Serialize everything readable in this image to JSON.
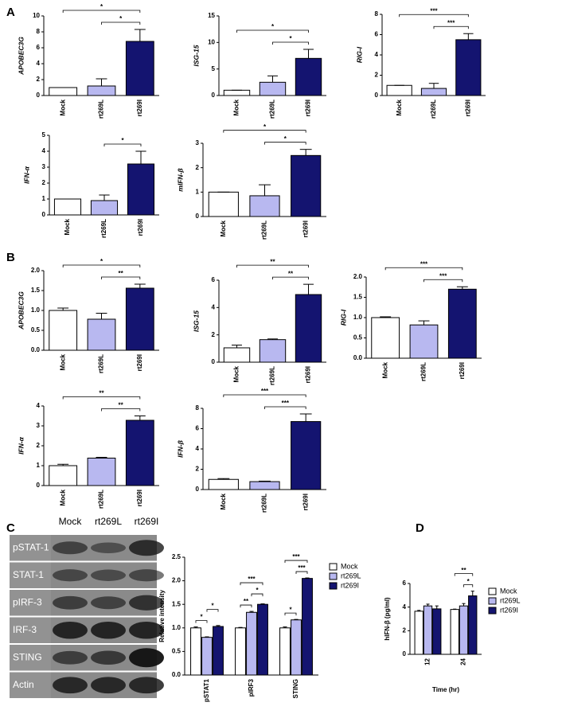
{
  "panels": [
    "A",
    "B",
    "C",
    "D"
  ],
  "blot": {
    "columns": [
      "Mock",
      "rt269L",
      "rt269I"
    ],
    "rows": [
      "pSTAT-1",
      "STAT-1",
      "pIRF-3",
      "IRF-3",
      "STING",
      "Actin"
    ]
  },
  "chart_data": [
    {
      "type": "bar",
      "y_label": "APOBEC3G",
      "categories": [
        "Mock",
        "rt269L",
        "rt269I"
      ],
      "values": [
        1,
        1.2,
        6.8
      ],
      "errors": [
        0,
        0.9,
        1.5
      ],
      "colors": [
        "#ffffff",
        "#b8b8f0",
        "#141470"
      ],
      "ylim": [
        0,
        10
      ],
      "yticks": [
        0,
        2,
        4,
        6,
        8,
        10
      ],
      "significance": [
        {
          "from": 1,
          "to": 2,
          "label": "*"
        },
        {
          "from": 0,
          "to": 2,
          "label": "*"
        }
      ]
    },
    {
      "type": "bar",
      "y_label": "ISG-15",
      "categories": [
        "Mock",
        "rt269L",
        "rt269I"
      ],
      "values": [
        1,
        2.5,
        7
      ],
      "errors": [
        0,
        1.2,
        1.7
      ],
      "colors": [
        "#ffffff",
        "#b8b8f0",
        "#141470"
      ],
      "ylim": [
        0,
        15
      ],
      "yticks": [
        0,
        5,
        10,
        15
      ],
      "significance": [
        {
          "from": 1,
          "to": 2,
          "label": "*"
        },
        {
          "from": 0,
          "to": 2,
          "label": "*"
        }
      ]
    },
    {
      "type": "bar",
      "y_label": "RIG-I",
      "categories": [
        "Mock",
        "rt269L",
        "rt269I"
      ],
      "values": [
        1,
        0.7,
        5.5
      ],
      "errors": [
        0,
        0.5,
        0.6
      ],
      "colors": [
        "#ffffff",
        "#b8b8f0",
        "#141470"
      ],
      "ylim": [
        0,
        8
      ],
      "yticks": [
        0,
        2,
        4,
        6,
        8
      ],
      "significance": [
        {
          "from": 1,
          "to": 2,
          "label": "***"
        },
        {
          "from": 0,
          "to": 2,
          "label": "***"
        }
      ]
    },
    {
      "type": "bar",
      "y_label": "IFN-α",
      "categories": [
        "Mock",
        "rt269L",
        "rt269I"
      ],
      "values": [
        1,
        0.9,
        3.2
      ],
      "errors": [
        0,
        0.35,
        0.8
      ],
      "colors": [
        "#ffffff",
        "#b8b8f0",
        "#141470"
      ],
      "ylim": [
        0,
        5
      ],
      "yticks": [
        0,
        1,
        2,
        3,
        4,
        5
      ],
      "significance": [
        {
          "from": 1,
          "to": 2,
          "label": "*"
        }
      ]
    },
    {
      "type": "bar",
      "y_label": "mIFN-β",
      "categories": [
        "Mock",
        "rt269L",
        "rt269I"
      ],
      "values": [
        1,
        0.85,
        2.5
      ],
      "errors": [
        0,
        0.45,
        0.25
      ],
      "colors": [
        "#ffffff",
        "#b8b8f0",
        "#141470"
      ],
      "ylim": [
        0,
        3
      ],
      "yticks": [
        0,
        1,
        2,
        3
      ],
      "significance": [
        {
          "from": 1,
          "to": 2,
          "label": "*"
        },
        {
          "from": 0,
          "to": 2,
          "label": "*"
        }
      ]
    },
    {
      "type": "bar",
      "y_label": "APOBEC3G",
      "categories": [
        "Mock",
        "rt269L",
        "rt269I"
      ],
      "values": [
        1,
        0.78,
        1.56
      ],
      "errors": [
        0.06,
        0.15,
        0.1
      ],
      "colors": [
        "#ffffff",
        "#b8b8f0",
        "#141470"
      ],
      "ylim": [
        0,
        2
      ],
      "yticks": [
        {
          "value": 0,
          "label": "0.0"
        },
        0.5,
        {
          "value": 1,
          "label": "1.0"
        },
        1.5,
        {
          "value": 2,
          "label": "2.0"
        }
      ],
      "significance": [
        {
          "from": 1,
          "to": 2,
          "label": "**"
        },
        {
          "from": 0,
          "to": 2,
          "label": "*"
        }
      ]
    },
    {
      "type": "bar",
      "y_label": "ISG-15",
      "categories": [
        "Mock",
        "rt269L",
        "rt269I"
      ],
      "values": [
        1.05,
        1.65,
        4.95
      ],
      "errors": [
        0.2,
        0.05,
        0.75
      ],
      "colors": [
        "#ffffff",
        "#b8b8f0",
        "#141470"
      ],
      "ylim": [
        0,
        6
      ],
      "yticks": [
        0,
        2,
        4,
        6
      ],
      "significance": [
        {
          "from": 1,
          "to": 2,
          "label": "**"
        },
        {
          "from": 0,
          "to": 2,
          "label": "**"
        }
      ]
    },
    {
      "type": "bar",
      "y_label": "RIG-I",
      "categories": [
        "Mock",
        "rt269L",
        "rt269I"
      ],
      "values": [
        1,
        0.82,
        1.7
      ],
      "errors": [
        0.02,
        0.1,
        0.06
      ],
      "colors": [
        "#ffffff",
        "#b8b8f0",
        "#141470"
      ],
      "ylim": [
        0,
        2
      ],
      "yticks": [
        {
          "value": 0,
          "label": "0.0"
        },
        0.5,
        {
          "value": 1,
          "label": "1.0"
        },
        1.5,
        {
          "value": 2,
          "label": "2.0"
        }
      ],
      "significance": [
        {
          "from": 1,
          "to": 2,
          "label": "***"
        },
        {
          "from": 0,
          "to": 2,
          "label": "***"
        }
      ]
    },
    {
      "type": "bar",
      "y_label": "IFN-α",
      "categories": [
        "Mock",
        "rt269L",
        "rt269I"
      ],
      "values": [
        1,
        1.38,
        3.28
      ],
      "errors": [
        0.07,
        0.04,
        0.22
      ],
      "colors": [
        "#ffffff",
        "#b8b8f0",
        "#141470"
      ],
      "ylim": [
        0,
        4
      ],
      "yticks": [
        0,
        1,
        2,
        3,
        4
      ],
      "significance": [
        {
          "from": 1,
          "to": 2,
          "label": "**"
        },
        {
          "from": 0,
          "to": 2,
          "label": "**"
        }
      ]
    },
    {
      "type": "bar",
      "y_label": "IFN-β",
      "categories": [
        "Mock",
        "rt269L",
        "rt269I"
      ],
      "values": [
        1,
        0.78,
        6.7
      ],
      "errors": [
        0.08,
        0.05,
        0.75
      ],
      "colors": [
        "#ffffff",
        "#b8b8f0",
        "#141470"
      ],
      "ylim": [
        0,
        8
      ],
      "yticks": [
        0,
        2,
        4,
        6,
        8
      ],
      "significance": [
        {
          "from": 1,
          "to": 2,
          "label": "***"
        },
        {
          "from": 0,
          "to": 2,
          "label": "***"
        }
      ]
    },
    {
      "type": "grouped_bar",
      "y_label": "Relative intensity",
      "categories": [
        "pSTAT1",
        "pIRF3",
        "STING"
      ],
      "series": [
        {
          "name": "Mock",
          "color": "#ffffff",
          "values": [
            1,
            1,
            1
          ],
          "errors": [
            0.02,
            0.01,
            0.02
          ]
        },
        {
          "name": "rt269L",
          "color": "#b8b8f0",
          "values": [
            0.8,
            1.33,
            1.17
          ],
          "errors": [
            0.01,
            0.02,
            0.01
          ]
        },
        {
          "name": "rt269I",
          "color": "#141470",
          "values": [
            1.03,
            1.5,
            2.05
          ],
          "errors": [
            0.02,
            0.01,
            0.01
          ]
        }
      ],
      "ylim": [
        0,
        2.5
      ],
      "yticks": [
        {
          "value": 0,
          "label": "0.0"
        },
        0.5,
        {
          "value": 1,
          "label": "1.0"
        },
        1.5,
        {
          "value": 2,
          "label": "2.0"
        },
        2.5
      ],
      "significance": [
        {
          "group": 0,
          "from": 0,
          "to": 1,
          "label": "*"
        },
        {
          "group": 0,
          "from": 1,
          "to": 2,
          "label": "*"
        },
        {
          "group": 1,
          "from": 0,
          "to": 1,
          "label": "**"
        },
        {
          "group": 1,
          "from": 1,
          "to": 2,
          "label": "*"
        },
        {
          "group": 1,
          "from": 0,
          "to": 2,
          "label": "***"
        },
        {
          "group": 2,
          "from": 0,
          "to": 1,
          "label": "*"
        },
        {
          "group": 2,
          "from": 1,
          "to": 2,
          "label": "***"
        },
        {
          "group": 2,
          "from": 0,
          "to": 2,
          "label": "***"
        }
      ]
    },
    {
      "type": "grouped_bar",
      "y_label": "hIFN-β (pg/ml)",
      "x_label": "Time (hr)",
      "categories": [
        "12",
        "24"
      ],
      "series": [
        {
          "name": "Mock",
          "color": "#ffffff",
          "values": [
            3.65,
            3.8
          ],
          "errors": [
            0.07,
            0.03
          ]
        },
        {
          "name": "rt269L",
          "color": "#b8b8f0",
          "values": [
            4.1,
            4.1
          ],
          "errors": [
            0.15,
            0.2
          ]
        },
        {
          "name": "rt269I",
          "color": "#141470",
          "values": [
            3.85,
            4.95
          ],
          "errors": [
            0.25,
            0.4
          ]
        }
      ],
      "ylim": [
        0,
        6
      ],
      "yticks": [
        0,
        2,
        4,
        6
      ],
      "significance": [
        {
          "group": 1,
          "from": 1,
          "to": 2,
          "label": "*"
        },
        {
          "group": 1,
          "from": 0,
          "to": 2,
          "label": "**"
        }
      ]
    }
  ]
}
